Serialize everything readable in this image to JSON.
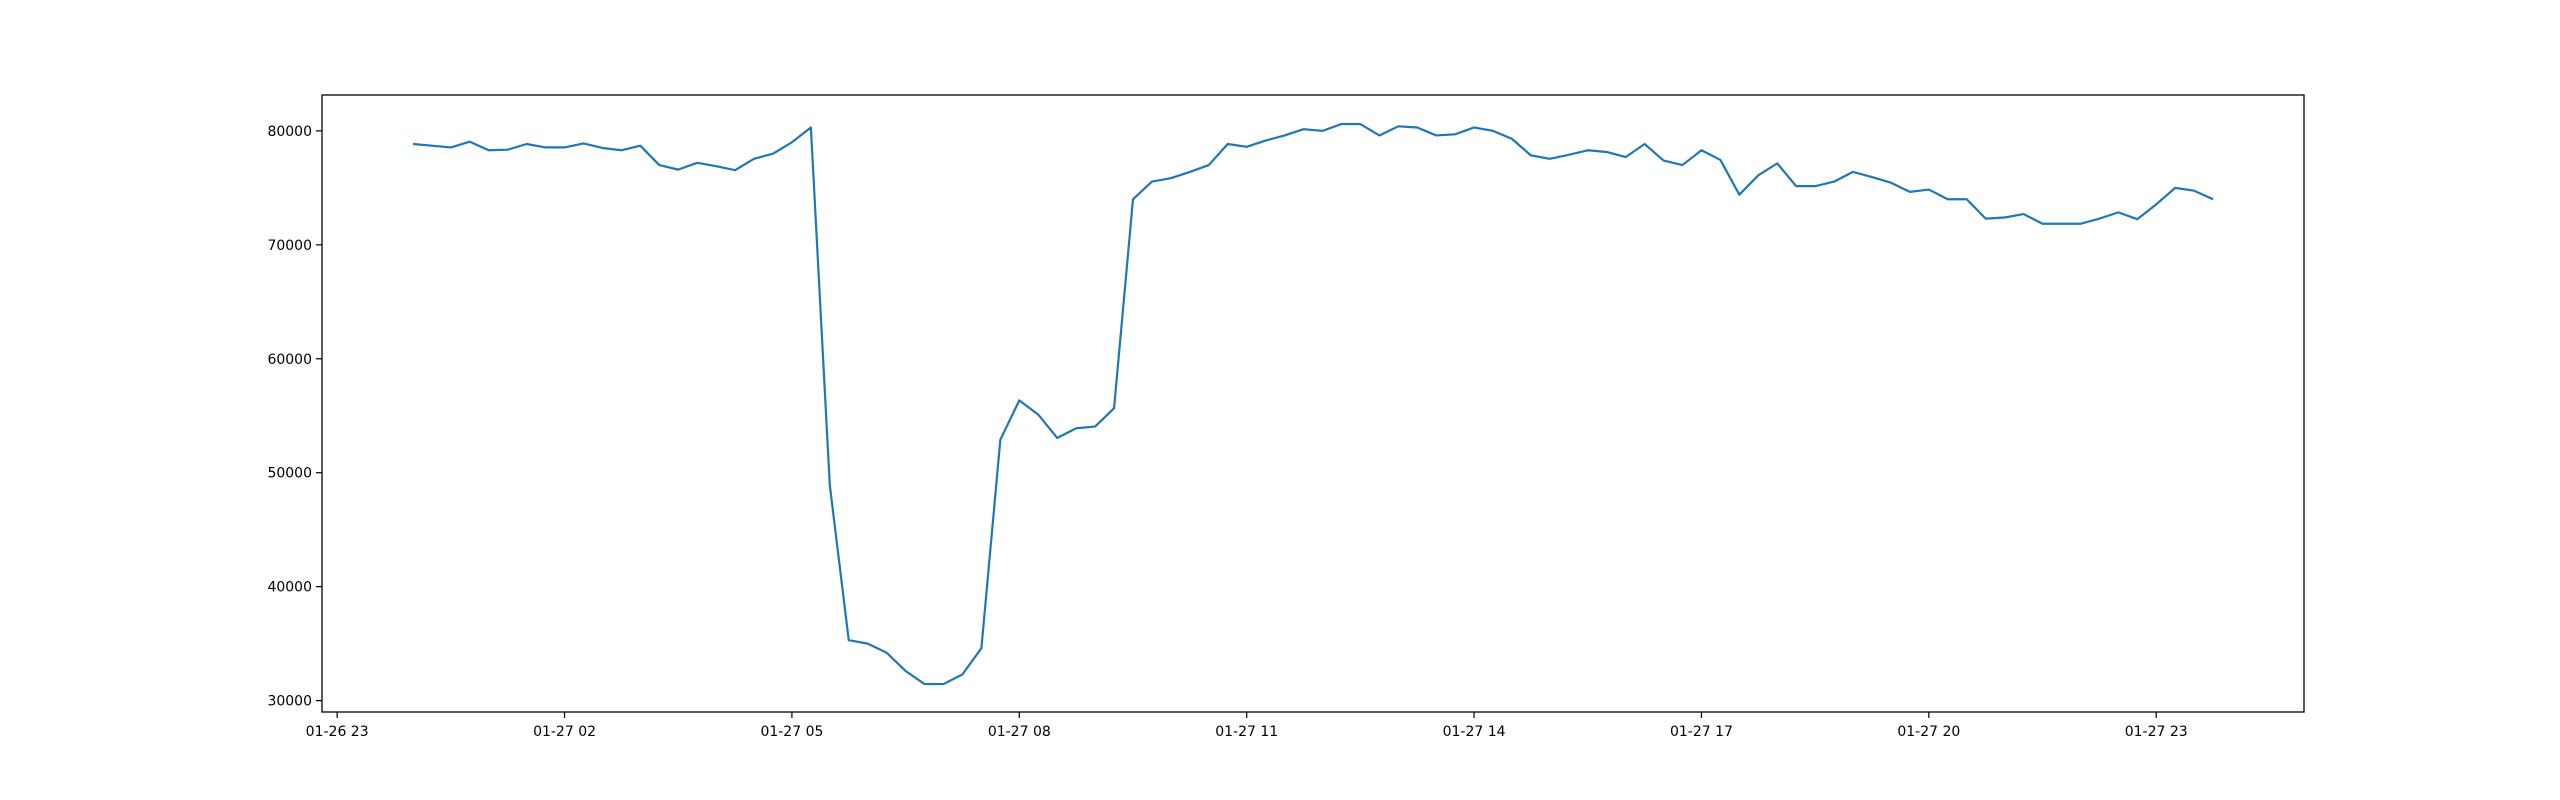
{
  "chart_data": {
    "type": "line",
    "x": [
      "01-27 00:00",
      "01-27 00:15",
      "01-27 00:30",
      "01-27 00:45",
      "01-27 01:00",
      "01-27 01:15",
      "01-27 01:30",
      "01-27 01:45",
      "01-27 02:00",
      "01-27 02:15",
      "01-27 02:30",
      "01-27 02:45",
      "01-27 03:00",
      "01-27 03:15",
      "01-27 03:30",
      "01-27 03:45",
      "01-27 04:00",
      "01-27 04:15",
      "01-27 04:30",
      "01-27 04:45",
      "01-27 05:00",
      "01-27 05:15",
      "01-27 05:30",
      "01-27 05:45",
      "01-27 06:00",
      "01-27 06:15",
      "01-27 06:30",
      "01-27 06:45",
      "01-27 07:00",
      "01-27 07:15",
      "01-27 07:30",
      "01-27 07:45",
      "01-27 08:00",
      "01-27 08:15",
      "01-27 08:30",
      "01-27 08:45",
      "01-27 09:00",
      "01-27 09:15",
      "01-27 09:30",
      "01-27 09:45",
      "01-27 10:00",
      "01-27 10:15",
      "01-27 10:30",
      "01-27 10:45",
      "01-27 11:00",
      "01-27 11:15",
      "01-27 11:30",
      "01-27 11:45",
      "01-27 12:00",
      "01-27 12:15",
      "01-27 12:30",
      "01-27 12:45",
      "01-27 13:00",
      "01-27 13:15",
      "01-27 13:30",
      "01-27 13:45",
      "01-27 14:00",
      "01-27 14:15",
      "01-27 14:30",
      "01-27 14:45",
      "01-27 15:00",
      "01-27 15:15",
      "01-27 15:30",
      "01-27 15:45",
      "01-27 16:00",
      "01-27 16:15",
      "01-27 16:30",
      "01-27 16:45",
      "01-27 17:00",
      "01-27 17:15",
      "01-27 17:30",
      "01-27 17:45",
      "01-27 18:00",
      "01-27 18:15",
      "01-27 18:30",
      "01-27 18:45",
      "01-27 19:00",
      "01-27 19:15",
      "01-27 19:30",
      "01-27 19:45",
      "01-27 20:00",
      "01-27 20:15",
      "01-27 20:30",
      "01-27 20:45",
      "01-27 21:00",
      "01-27 21:15",
      "01-27 21:30",
      "01-27 21:45",
      "01-27 22:00",
      "01-27 22:15",
      "01-27 22:30",
      "01-27 22:45",
      "01-27 23:00",
      "01-27 23:15",
      "01-27 23:30",
      "01-27 23:45"
    ],
    "values": [
      78850,
      78700,
      78550,
      79050,
      78300,
      78350,
      78850,
      78550,
      78550,
      78900,
      78500,
      78300,
      78700,
      77000,
      76600,
      77200,
      76900,
      76550,
      77550,
      78000,
      79000,
      80300,
      48900,
      35300,
      35000,
      34200,
      32600,
      31450,
      31450,
      32300,
      34600,
      52900,
      56350,
      55100,
      53050,
      53900,
      54050,
      55650,
      74000,
      75550,
      75850,
      76400,
      77000,
      78850,
      78600,
      79150,
      79600,
      80150,
      80000,
      80600,
      80600,
      79600,
      80400,
      80300,
      79600,
      79700,
      80300,
      80000,
      79300,
      77850,
      77550,
      77900,
      78300,
      78150,
      77700,
      78850,
      77400,
      77000,
      78300,
      77450,
      74400,
      76100,
      77150,
      75150,
      75150,
      75550,
      76400,
      75950,
      75450,
      74650,
      74850,
      74000,
      74000,
      72300,
      72400,
      72700,
      71850,
      71850,
      71850,
      72300,
      72850,
      72250,
      73550,
      75000,
      74750,
      74000
    ],
    "color": "#1f77b4",
    "xlim": [
      "01-26 22:48",
      "01-28 00:57"
    ],
    "xticks": [
      "01-26 23",
      "01-27 02",
      "01-27 05",
      "01-27 08",
      "01-27 11",
      "01-27 14",
      "01-27 17",
      "01-27 20",
      "01-27 23"
    ],
    "ylim": [
      29000,
      83150
    ],
    "yticks": [
      30000,
      40000,
      50000,
      60000,
      70000,
      80000
    ]
  }
}
